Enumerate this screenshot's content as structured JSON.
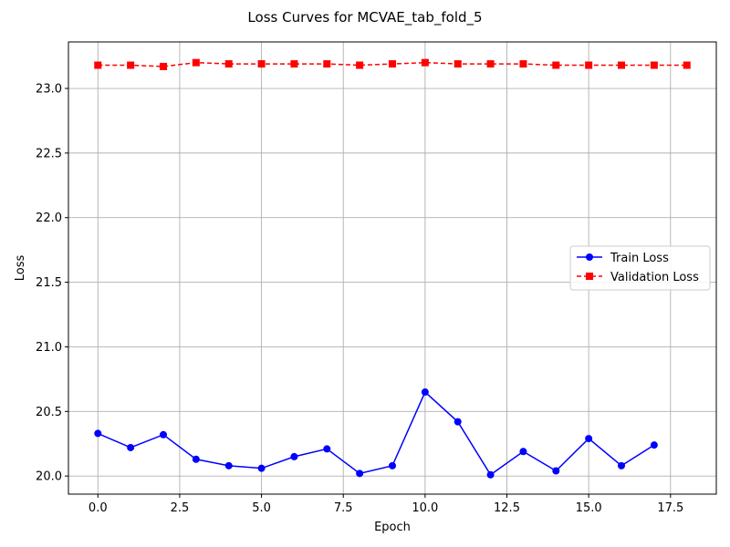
{
  "chart_data": {
    "type": "line",
    "title": "Loss Curves for MCVAE_tab_fold_5",
    "xlabel": "Epoch",
    "ylabel": "Loss",
    "xlim": [
      -0.9,
      18.9
    ],
    "ylim": [
      19.86,
      23.36
    ],
    "xticks": [
      0.0,
      2.5,
      5.0,
      7.5,
      10.0,
      12.5,
      15.0,
      17.5
    ],
    "xtick_labels": [
      "0.0",
      "2.5",
      "5.0",
      "7.5",
      "10.0",
      "12.5",
      "15.0",
      "17.5"
    ],
    "yticks": [
      20.0,
      20.5,
      21.0,
      21.5,
      22.0,
      22.5,
      23.0
    ],
    "ytick_labels": [
      "20.0",
      "20.5",
      "21.0",
      "21.5",
      "22.0",
      "22.5",
      "23.0"
    ],
    "grid": true,
    "legend_position": "center-right",
    "series": [
      {
        "name": "Train Loss",
        "color": "#0000ff",
        "line_style": "solid",
        "marker": "circle",
        "x": [
          0,
          1,
          2,
          3,
          4,
          5,
          6,
          7,
          8,
          9,
          10,
          11,
          12,
          13,
          14,
          15,
          16,
          17
        ],
        "values": [
          20.33,
          20.22,
          20.32,
          20.13,
          20.08,
          20.06,
          20.15,
          20.21,
          20.02,
          20.08,
          20.65,
          20.42,
          20.01,
          20.19,
          20.04,
          20.29,
          20.08,
          20.24
        ]
      },
      {
        "name": "Validation Loss",
        "color": "#ff0000",
        "line_style": "dashed",
        "marker": "square",
        "x": [
          0,
          1,
          2,
          3,
          4,
          5,
          6,
          7,
          8,
          9,
          10,
          11,
          12,
          13,
          14,
          15,
          16,
          17,
          18
        ],
        "values": [
          23.18,
          23.18,
          23.17,
          23.2,
          23.19,
          23.19,
          23.19,
          23.19,
          23.18,
          23.19,
          23.2,
          23.19,
          23.19,
          23.19,
          23.18,
          23.18,
          23.18,
          23.18,
          23.18
        ]
      }
    ]
  }
}
